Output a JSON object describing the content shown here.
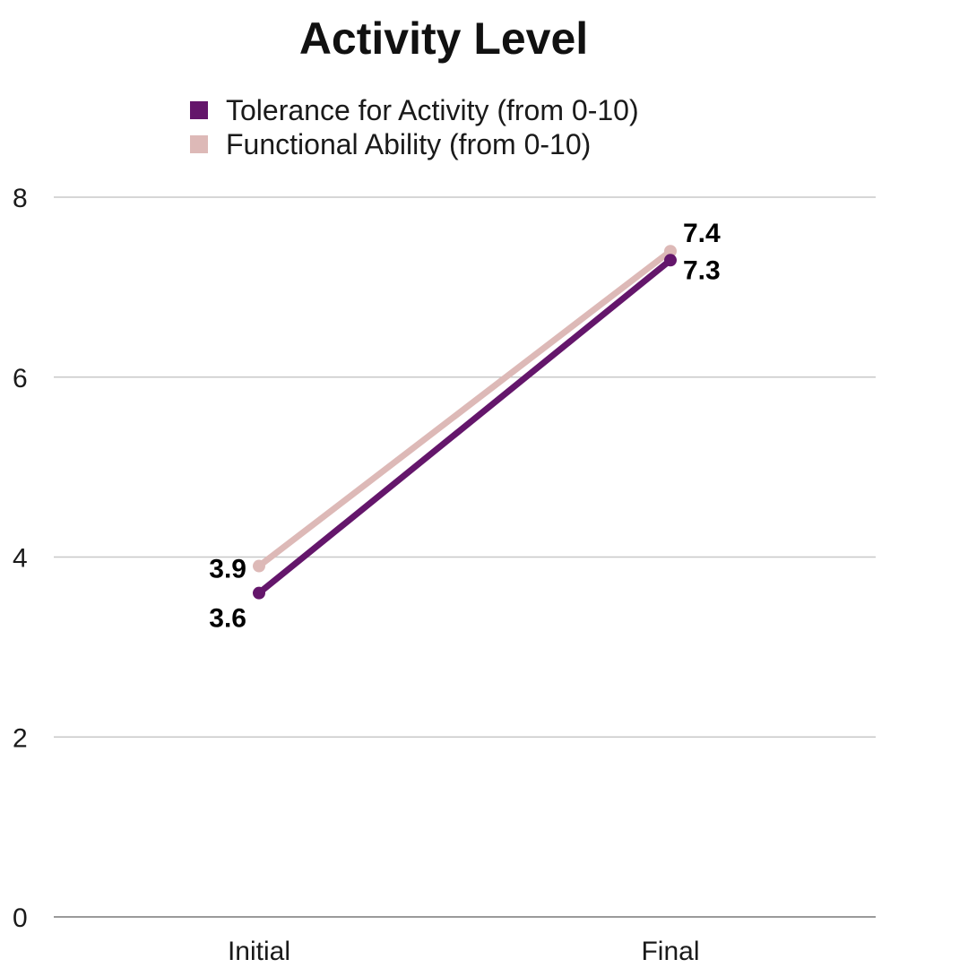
{
  "chart_data": {
    "type": "line",
    "title": "Activity Level",
    "xlabel": "",
    "ylabel": "",
    "categories": [
      "Initial",
      "Final"
    ],
    "ylim": [
      0,
      8
    ],
    "yticks": [
      "0",
      "2",
      "4",
      "6",
      "8"
    ],
    "grid": true,
    "legend_position": "top",
    "series": [
      {
        "name": "Tolerance for Activity (from 0-10)",
        "color": "#64166b",
        "values": [
          3.6,
          7.3
        ],
        "labels": [
          "3.6",
          "7.3"
        ]
      },
      {
        "name": "Functional Ability (from 0-10)",
        "color": "#ddb9b7",
        "values": [
          3.9,
          7.4
        ],
        "labels": [
          "3.9",
          "7.4"
        ]
      }
    ]
  }
}
